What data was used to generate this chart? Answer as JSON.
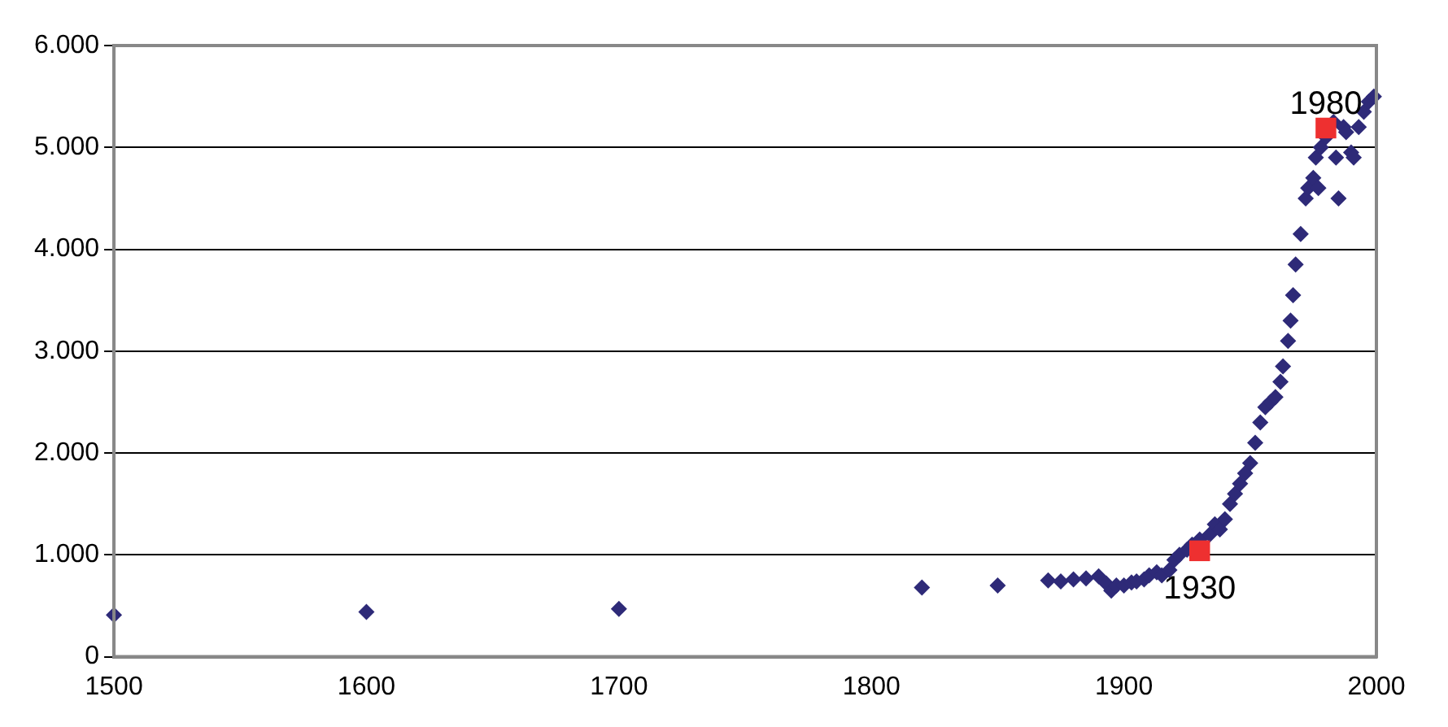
{
  "chart_data": {
    "type": "scatter",
    "grid": "y",
    "xlim": [
      1500,
      2000
    ],
    "xticks": [
      1500,
      1600,
      1700,
      1800,
      1900,
      2000
    ],
    "ylim": [
      0,
      6000
    ],
    "yticks": [
      {
        "value": 0,
        "label": "0"
      },
      {
        "value": 1000,
        "label": "1.000"
      },
      {
        "value": 2000,
        "label": "2.000"
      },
      {
        "value": 3000,
        "label": "3.000"
      },
      {
        "value": 4000,
        "label": "4.000"
      },
      {
        "value": 5000,
        "label": "5.000"
      },
      {
        "value": 6000,
        "label": "6.000"
      }
    ],
    "series": [
      {
        "color": "#2e2a78",
        "marker": "diamond",
        "x": [
          1500,
          1600,
          1700,
          1820,
          1850,
          1870,
          1875,
          1880,
          1885,
          1890,
          1893,
          1895,
          1897,
          1900,
          1903,
          1905,
          1908,
          1910,
          1913,
          1915,
          1918,
          1920,
          1922,
          1925,
          1927,
          1930,
          1932,
          1934,
          1936,
          1938,
          1940,
          1942,
          1944,
          1946,
          1948,
          1950,
          1952,
          1954,
          1956,
          1958,
          1960,
          1962,
          1963,
          1965,
          1966,
          1967,
          1968,
          1970,
          1972,
          1973,
          1975,
          1976,
          1977,
          1978,
          1980,
          1983,
          1984,
          1985,
          1987,
          1988,
          1990,
          1991,
          1993,
          1995,
          1997,
          1999
        ],
        "values": [
          410,
          440,
          470,
          680,
          700,
          750,
          740,
          760,
          770,
          790,
          720,
          650,
          700,
          700,
          730,
          740,
          760,
          800,
          830,
          800,
          850,
          950,
          1000,
          1050,
          1100,
          1150,
          null,
          1200,
          1300,
          1250,
          1350,
          1500,
          1600,
          1700,
          1800,
          1900,
          2100,
          2300,
          2450,
          2500,
          2550,
          2700,
          2850,
          3100,
          3300,
          3550,
          3850,
          4150,
          4500,
          4600,
          4700,
          4900,
          4600,
          5000,
          5100,
          5250,
          4900,
          4500,
          5200,
          5150,
          4950,
          4900,
          5200,
          5350,
          5450,
          5500
        ]
      },
      {
        "color": "#ee3030",
        "marker": "square",
        "x": [
          1930,
          1980
        ],
        "values": [
          1040,
          5190
        ]
      }
    ],
    "legend": false,
    "annotations": [
      {
        "text": "1930",
        "x": 1930,
        "y": 1040
      },
      {
        "text": "1980",
        "x": 1980,
        "y": 5190
      }
    ]
  }
}
